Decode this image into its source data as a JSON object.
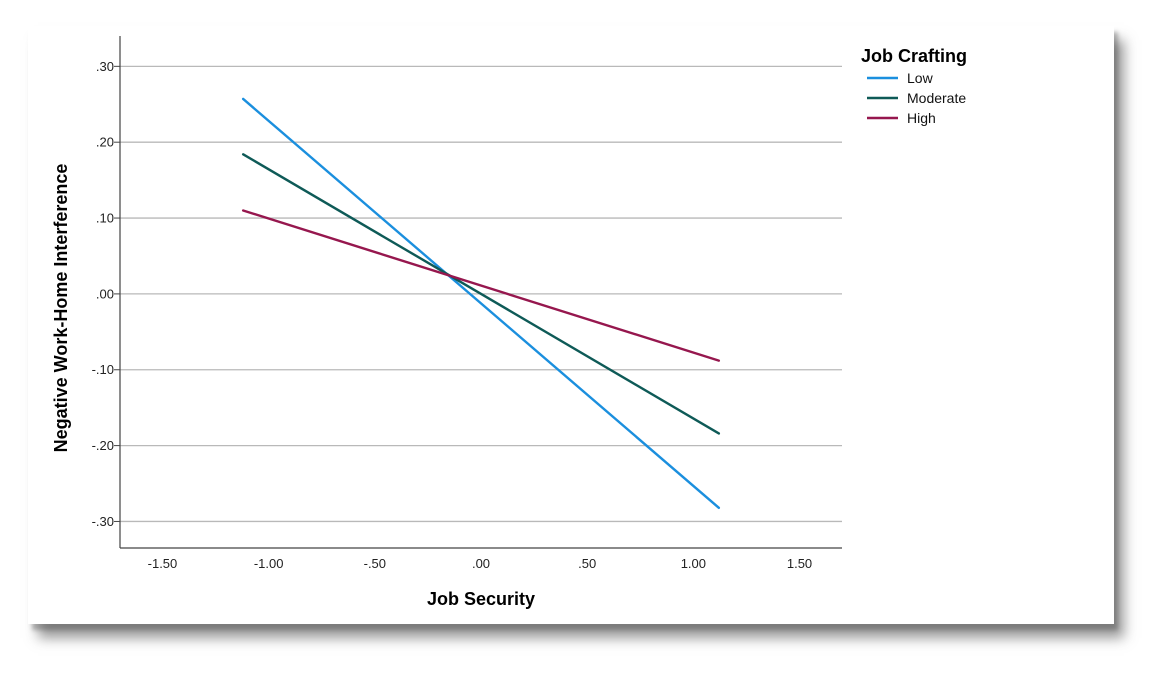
{
  "chart_data": {
    "type": "line",
    "xlabel": "Job Security",
    "ylabel": "Negative Work-Home Interference",
    "xlim": [
      -1.7,
      1.7
    ],
    "ylim": [
      -0.335,
      0.34
    ],
    "x_ticks": [
      -1.5,
      -1.0,
      -0.5,
      0.0,
      0.5,
      1.0,
      1.5
    ],
    "x_tick_labels": [
      "-1.50",
      "-1.00",
      "-.50",
      ".00",
      ".50",
      "1.00",
      "1.50"
    ],
    "y_ticks": [
      0.3,
      0.2,
      0.1,
      0.0,
      -0.1,
      -0.2,
      -0.3
    ],
    "y_tick_labels": [
      ".30",
      ".20",
      ".10",
      ".00",
      "-.10",
      "-.20",
      "-.30"
    ],
    "grid": "horizontal",
    "legend": {
      "title": "Job Crafting",
      "placement": "top-right"
    },
    "series": [
      {
        "name": "Low",
        "color": "#1b8fde",
        "x": [
          -1.12,
          1.12
        ],
        "y": [
          0.257,
          -0.282
        ]
      },
      {
        "name": "Moderate",
        "color": "#0e5a57",
        "x": [
          -1.12,
          1.12
        ],
        "y": [
          0.184,
          -0.184
        ]
      },
      {
        "name": "High",
        "color": "#96174e",
        "x": [
          -1.12,
          1.12
        ],
        "y": [
          0.11,
          -0.088
        ]
      }
    ]
  }
}
